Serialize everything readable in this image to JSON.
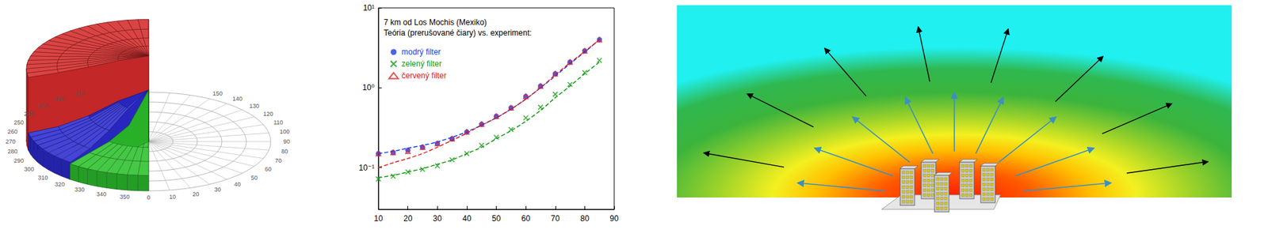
{
  "chart_data": [
    {
      "type": "polar_surface",
      "angle_ticks": [
        0,
        10,
        20,
        30,
        40,
        50,
        60,
        70,
        80,
        90,
        100,
        110,
        120,
        130,
        140,
        150,
        210,
        220,
        230,
        240,
        250,
        260,
        270,
        280,
        290,
        300,
        310,
        320,
        330,
        340,
        350
      ],
      "radii": [
        0,
        0.25,
        0.5,
        0.75,
        1
      ],
      "sectors": [
        {
          "color": "#d42a2a",
          "angles": [
            180,
            280
          ],
          "heights": [
            1,
            0.97,
            0.92,
            0.88,
            0.85
          ]
        },
        {
          "color": "#2a2ad0",
          "angles": [
            280,
            320
          ],
          "heights": [
            0.6,
            0.5,
            0.35,
            0.25,
            0.2
          ]
        },
        {
          "color": "#2cc02c",
          "angles": [
            320,
            360
          ],
          "heights": [
            0.6,
            0.3,
            0.22,
            0.2,
            0.18
          ]
        }
      ]
    },
    {
      "type": "scatter",
      "title": "7 km od Los Mochis (Mexiko)",
      "subtitle": "Teória (prerušované čiary) vs. experiment:",
      "x": [
        10,
        15,
        20,
        25,
        30,
        35,
        40,
        45,
        50,
        55,
        60,
        65,
        70,
        75,
        80,
        85
      ],
      "series": [
        {
          "name": "modrý filter",
          "color": "#1a3cf0",
          "marker": "circle",
          "values": [
            0.15,
            0.155,
            0.165,
            0.18,
            0.2,
            0.23,
            0.28,
            0.35,
            0.44,
            0.56,
            0.78,
            1.05,
            1.5,
            2.1,
            2.9,
            4.0
          ]
        },
        {
          "name": "zelený filter",
          "color": "#109a10",
          "marker": "x",
          "values": [
            0.072,
            0.078,
            0.088,
            0.095,
            0.105,
            0.125,
            0.15,
            0.19,
            0.24,
            0.3,
            0.42,
            0.57,
            0.83,
            1.1,
            1.55,
            2.2
          ]
        },
        {
          "name": "červený filter",
          "color": "#e02020",
          "marker": "triangle",
          "values": [
            0.15,
            0.155,
            0.16,
            0.18,
            0.2,
            0.23,
            0.28,
            0.35,
            0.44,
            0.56,
            0.78,
            1.05,
            1.5,
            2.1,
            2.9,
            4.0
          ]
        },
        {
          "type": "line",
          "line_style": "dashed",
          "color": "#1a3cf0",
          "values": [
            0.15,
            0.16,
            0.175,
            0.19,
            0.21,
            0.24,
            0.28,
            0.34,
            0.42,
            0.54,
            0.72,
            1.0,
            1.4,
            2.0,
            2.8,
            4.0
          ]
        },
        {
          "type": "line",
          "line_style": "dashed",
          "color": "#109a10",
          "values": [
            0.075,
            0.08,
            0.088,
            0.097,
            0.11,
            0.125,
            0.15,
            0.18,
            0.23,
            0.29,
            0.38,
            0.52,
            0.75,
            1.05,
            1.5,
            2.1
          ]
        },
        {
          "type": "line",
          "line_style": "dashed",
          "color": "#e02020",
          "values": [
            0.1,
            0.115,
            0.13,
            0.15,
            0.18,
            0.22,
            0.27,
            0.34,
            0.42,
            0.54,
            0.72,
            1.0,
            1.45,
            2.05,
            2.85,
            4.0
          ]
        }
      ],
      "xlim": [
        10,
        90
      ],
      "xticks": [
        10,
        20,
        30,
        40,
        50,
        60,
        70,
        80,
        90
      ],
      "ylim": [
        0.03,
        10
      ],
      "yticks": [
        {
          "value": 0.1,
          "label": "10⁻¹"
        },
        {
          "value": 1,
          "label": "10⁰"
        },
        {
          "value": 10,
          "label": "10¹"
        }
      ],
      "log": "y",
      "grid": false,
      "legend": "upper left"
    }
  ]
}
